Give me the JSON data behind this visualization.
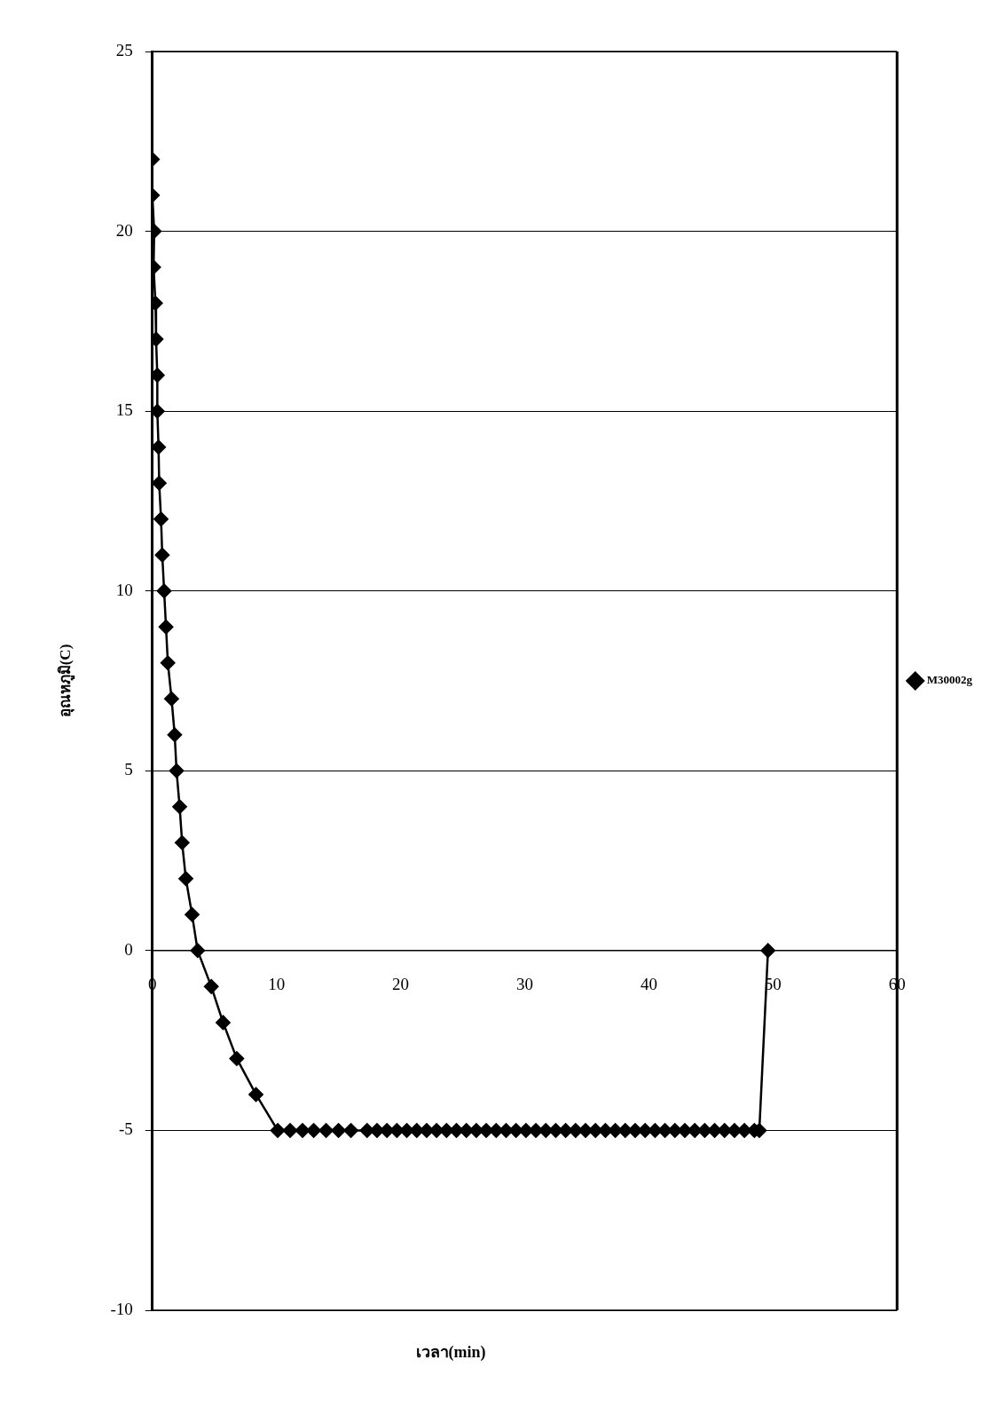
{
  "chart_data": {
    "type": "line",
    "xlabel": "เวลา(min)",
    "ylabel": "อุณหภูมิ(C)",
    "xlim": [
      0,
      60
    ],
    "xticks": [
      0,
      10,
      20,
      30,
      40,
      50,
      60
    ],
    "ylim": [
      -10,
      25
    ],
    "yticks": [
      -10,
      -5,
      0,
      5,
      10,
      15,
      20,
      25
    ],
    "grid": "y",
    "legend": "right",
    "marker": "diamond",
    "line_style": "solid",
    "series": [
      {
        "name": "M30002g",
        "color": "#000000",
        "x": [
          0,
          0,
          0.15,
          0.1,
          0.25,
          0.3,
          0.4,
          0.4,
          0.5,
          0.55,
          0.7,
          0.8,
          0.95,
          1.1,
          1.25,
          1.55,
          1.8,
          1.95,
          2.2,
          2.4,
          2.7,
          3.2,
          3.65,
          4.75,
          5.7,
          6.8,
          8.35,
          10.1,
          11.1,
          12.1,
          13.0,
          14.0,
          15.0,
          16.0,
          17.3,
          18.1,
          18.9,
          19.7,
          20.5,
          21.3,
          22.1,
          22.9,
          23.7,
          24.5,
          25.3,
          26.1,
          26.9,
          27.7,
          28.5,
          29.3,
          30.1,
          30.9,
          31.7,
          32.5,
          33.3,
          34.1,
          34.9,
          35.7,
          36.5,
          37.3,
          38.1,
          38.9,
          39.7,
          40.5,
          41.3,
          42.1,
          42.9,
          43.7,
          44.5,
          45.3,
          46.1,
          46.9,
          47.7,
          48.5,
          48.9,
          49.6
        ],
        "values": [
          22,
          21,
          20,
          19,
          18,
          17,
          16,
          15,
          14,
          13,
          12,
          11,
          10,
          9,
          8,
          7,
          6,
          5,
          4,
          3,
          2,
          1,
          0,
          -1,
          -2,
          -3,
          -4,
          -5,
          -5,
          -5,
          -5,
          -5,
          -5,
          -5,
          -5,
          -5,
          -5,
          -5,
          -5,
          -5,
          -5,
          -5,
          -5,
          -5,
          -5,
          -5,
          -5,
          -5,
          -5,
          -5,
          -5,
          -5,
          -5,
          -5,
          -5,
          -5,
          -5,
          -5,
          -5,
          -5,
          -5,
          -5,
          -5,
          -5,
          -5,
          -5,
          -5,
          -5,
          -5,
          -5,
          -5,
          -5,
          -5,
          -5,
          -5,
          0
        ]
      }
    ]
  }
}
